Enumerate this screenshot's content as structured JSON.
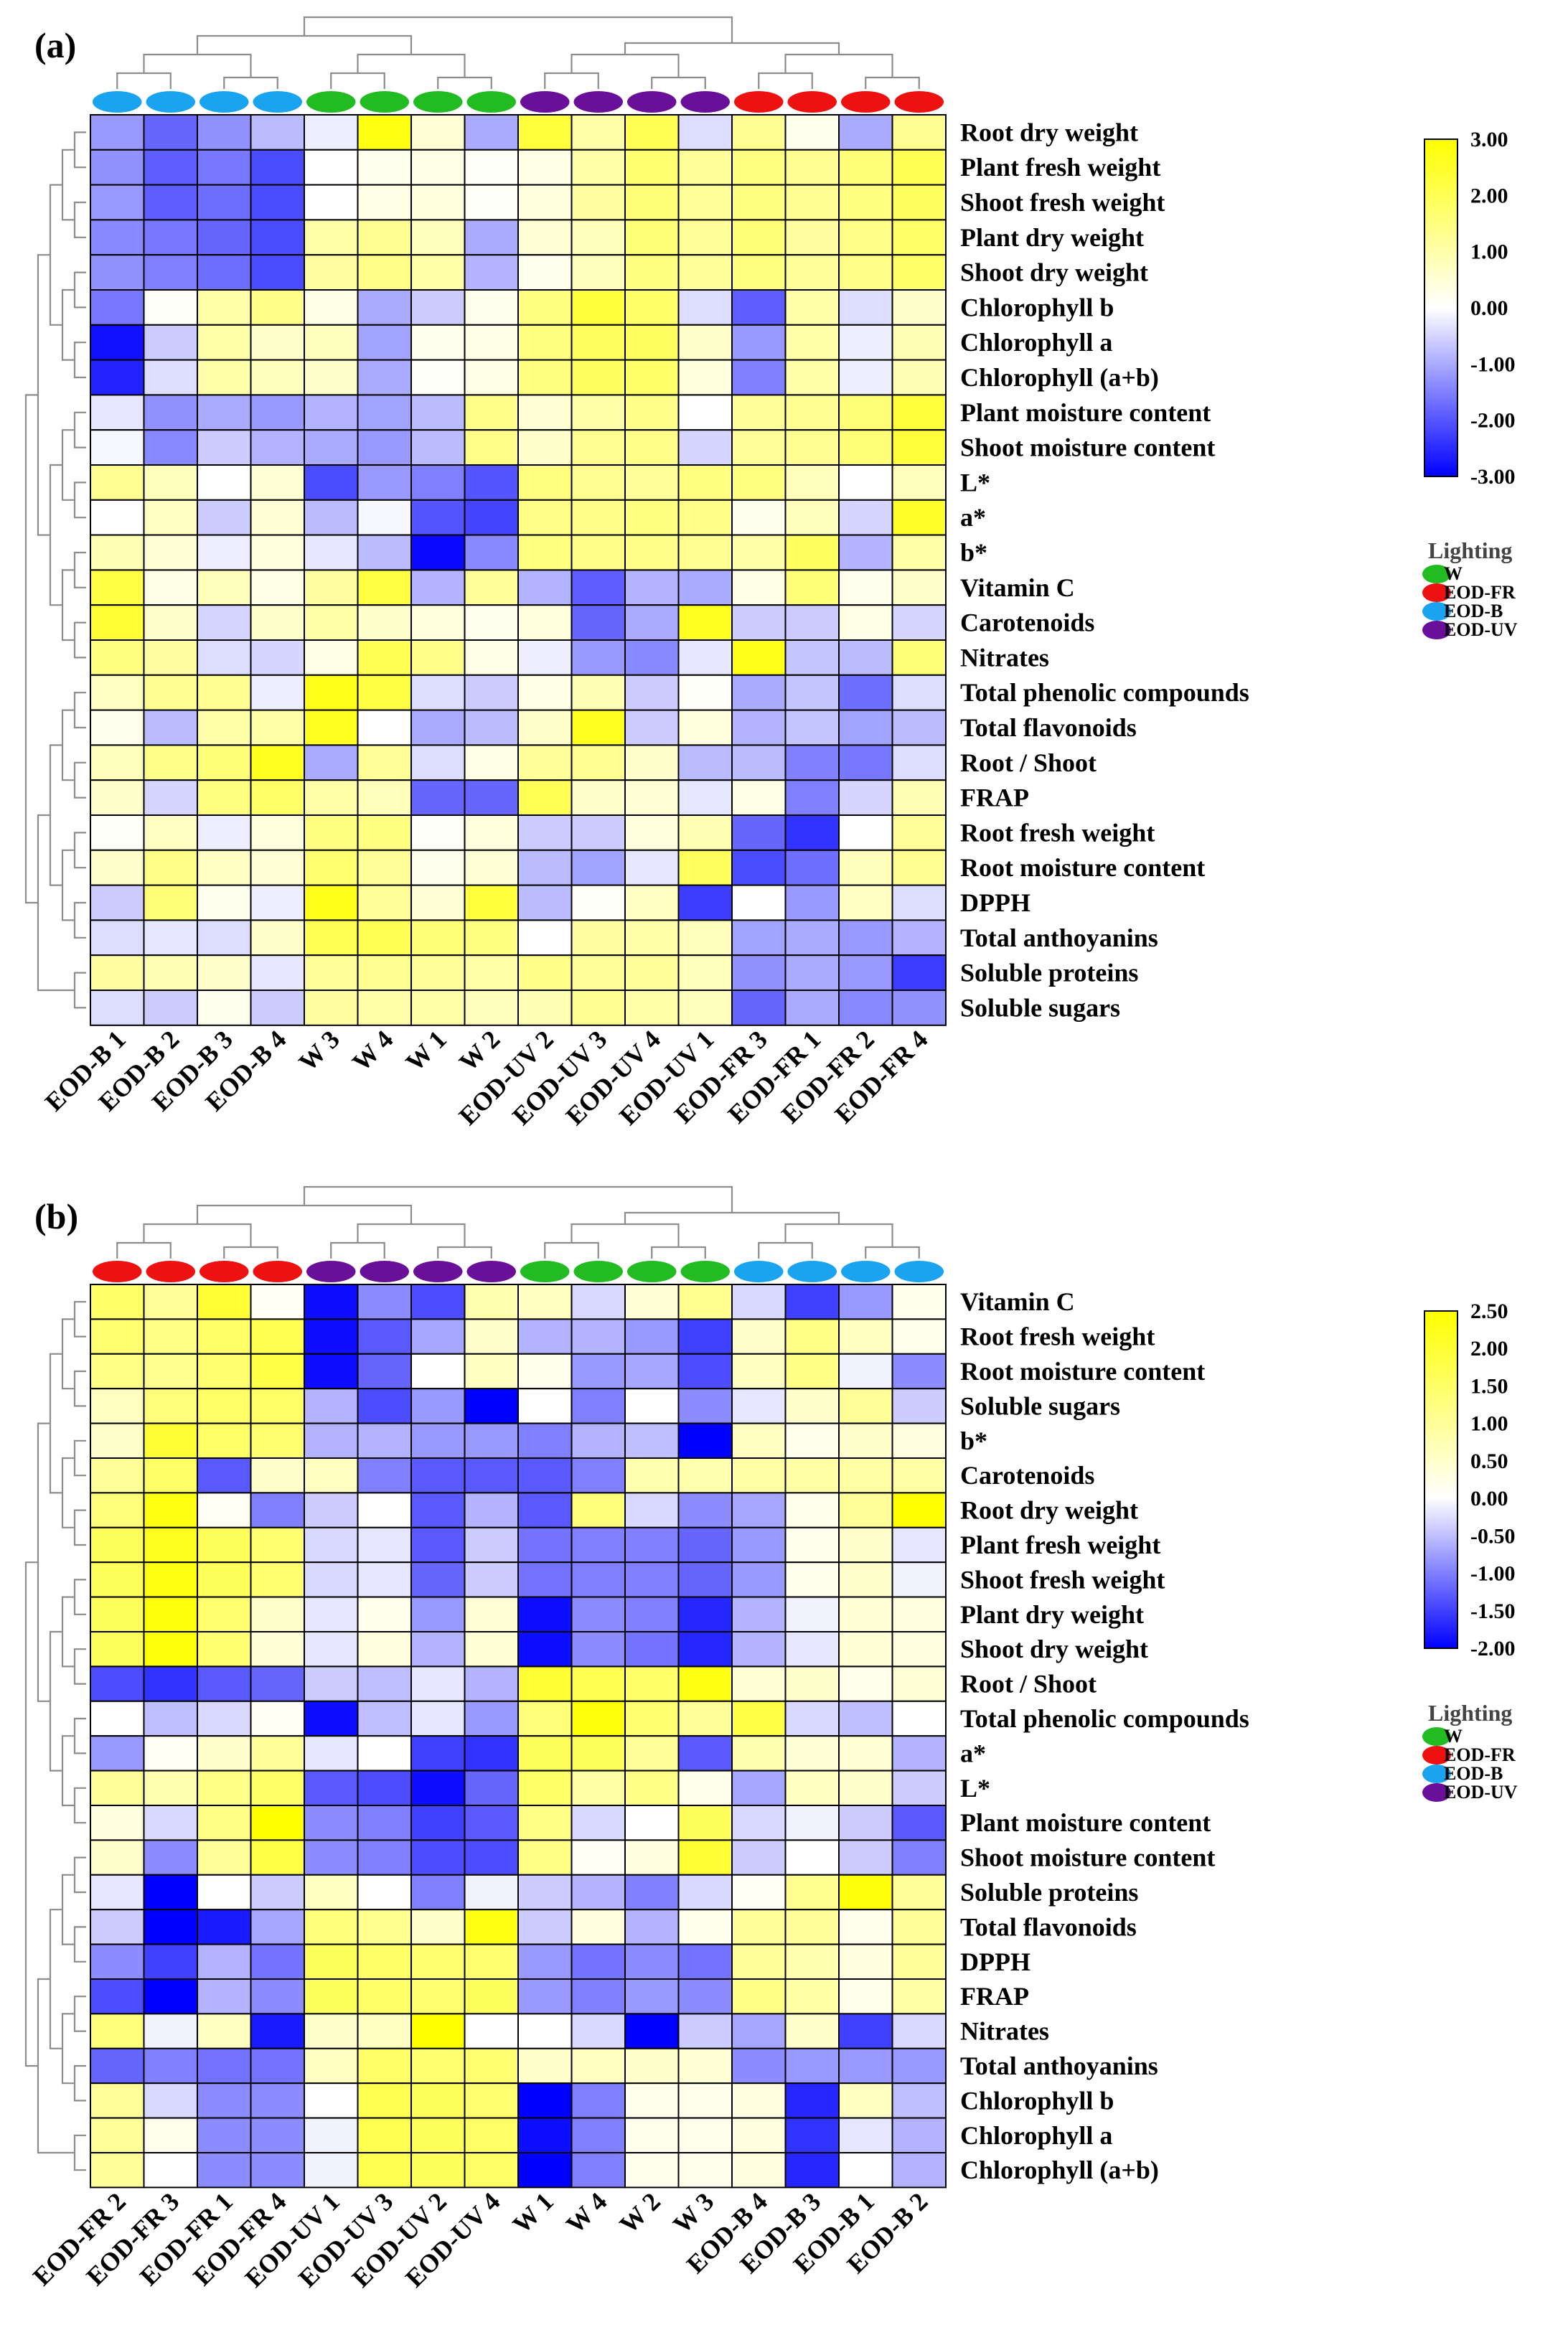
{
  "colors": {
    "W": "#22bb22",
    "EOD-FR": "#ee1111",
    "EOD-B": "#1aa3ee",
    "EOD-UV": "#6a0f99"
  },
  "chart_data": [
    {
      "type": "heatmap",
      "panel_label": "(a)",
      "columns": [
        "EOD-B 1",
        "EOD-B 2",
        "EOD-B 3",
        "EOD-B 4",
        "W 3",
        "W 4",
        "W 1",
        "W 2",
        "EOD-UV 2",
        "EOD-UV 3",
        "EOD-UV 4",
        "EOD-UV 1",
        "EOD-FR 3",
        "EOD-FR 1",
        "EOD-FR 2",
        "EOD-FR 4"
      ],
      "column_groups": [
        "EOD-B",
        "EOD-B",
        "EOD-B",
        "EOD-B",
        "W",
        "W",
        "W",
        "W",
        "EOD-UV",
        "EOD-UV",
        "EOD-UV",
        "EOD-UV",
        "EOD-FR",
        "EOD-FR",
        "EOD-FR",
        "EOD-FR"
      ],
      "rows": [
        "Root dry weight",
        "Plant fresh weight",
        "Shoot fresh weight",
        "Plant dry weight",
        "Shoot dry weight",
        "Chlorophyll b",
        "Chlorophyll a",
        "Chlorophyll (a+b)",
        "Plant moisture content",
        "Shoot moisture content",
        "L*",
        "a*",
        "b*",
        "Vitamin C",
        "Carotenoids",
        "Nitrates",
        "Total phenolic compounds",
        "Total flavonoids",
        "Root / Shoot",
        "FRAP",
        "Root fresh weight",
        "Root moisture content",
        "DPPH",
        "Total anthoyanins",
        "Soluble proteins",
        "Soluble sugars"
      ],
      "values": [
        [
          -1.2,
          -1.8,
          -1.3,
          -0.8,
          -0.2,
          2.8,
          0.5,
          -1.0,
          2.3,
          1.0,
          2.0,
          -0.4,
          1.3,
          0.2,
          -1.0,
          1.3
        ],
        [
          -1.3,
          -1.9,
          -1.6,
          -2.1,
          0.0,
          0.2,
          0.3,
          0.1,
          0.3,
          1.0,
          1.7,
          1.2,
          1.5,
          1.3,
          1.6,
          2.0
        ],
        [
          -1.2,
          -1.9,
          -1.7,
          -2.1,
          0.0,
          0.3,
          0.4,
          0.1,
          0.4,
          1.1,
          1.6,
          1.2,
          1.5,
          1.3,
          1.5,
          1.9
        ],
        [
          -1.4,
          -1.6,
          -1.8,
          -2.1,
          1.0,
          1.3,
          0.8,
          -1.0,
          0.5,
          0.8,
          1.6,
          1.2,
          1.6,
          1.1,
          1.4,
          1.8
        ],
        [
          -1.3,
          -1.5,
          -1.7,
          -2.1,
          1.1,
          1.4,
          1.0,
          -0.9,
          0.2,
          0.8,
          1.5,
          1.2,
          1.5,
          1.2,
          1.4,
          1.8
        ],
        [
          -1.6,
          0.1,
          1.0,
          1.4,
          0.3,
          -1.0,
          -0.6,
          0.2,
          1.5,
          2.3,
          1.8,
          -0.4,
          -1.9,
          1.0,
          -0.4,
          0.6
        ],
        [
          -2.8,
          -0.6,
          1.0,
          0.6,
          0.8,
          -1.1,
          0.2,
          0.3,
          1.5,
          1.9,
          1.9,
          0.6,
          -1.2,
          1.0,
          -0.2,
          0.9
        ],
        [
          -2.6,
          -0.4,
          1.0,
          0.8,
          0.6,
          -1.0,
          0.1,
          0.3,
          1.5,
          1.9,
          1.8,
          0.4,
          -1.5,
          1.0,
          -0.2,
          0.9
        ],
        [
          -0.3,
          -1.3,
          -1.0,
          -1.2,
          -0.9,
          -1.1,
          -0.8,
          1.4,
          0.5,
          1.0,
          1.4,
          0.0,
          1.2,
          1.3,
          1.6,
          2.3
        ],
        [
          -0.1,
          -1.4,
          -0.6,
          -0.9,
          -1.0,
          -1.2,
          -0.8,
          1.4,
          0.6,
          1.3,
          1.4,
          -0.5,
          1.2,
          1.3,
          1.6,
          2.3
        ],
        [
          1.3,
          0.8,
          0.0,
          0.5,
          -2.1,
          -1.2,
          -1.5,
          -2.0,
          1.5,
          1.3,
          1.2,
          1.5,
          1.5,
          0.8,
          0.0,
          0.8
        ],
        [
          0.0,
          0.7,
          -0.6,
          0.5,
          -0.8,
          -0.1,
          -2.0,
          -2.2,
          1.4,
          1.4,
          1.5,
          1.4,
          0.2,
          0.8,
          -0.5,
          2.5
        ],
        [
          0.9,
          0.5,
          -0.2,
          0.4,
          -0.3,
          -0.8,
          -2.9,
          -1.4,
          1.5,
          1.4,
          1.4,
          1.3,
          1.0,
          1.9,
          -0.9,
          1.0
        ],
        [
          2.2,
          0.3,
          0.8,
          0.3,
          1.1,
          2.2,
          -0.9,
          1.2,
          -0.9,
          -1.9,
          -0.9,
          -1.0,
          0.3,
          1.6,
          0.2,
          0.6
        ],
        [
          2.4,
          0.6,
          -0.5,
          0.6,
          1.0,
          0.6,
          0.4,
          0.2,
          0.4,
          -1.8,
          -1.0,
          2.6,
          -0.6,
          -0.6,
          0.3,
          -0.5
        ],
        [
          1.5,
          1.1,
          -0.4,
          -0.5,
          0.3,
          2.0,
          1.4,
          0.3,
          -0.2,
          -1.2,
          -1.4,
          -0.3,
          2.7,
          -0.7,
          -0.8,
          1.6
        ],
        [
          0.7,
          1.3,
          1.3,
          -0.2,
          2.7,
          2.2,
          -0.4,
          -0.6,
          0.3,
          0.9,
          -0.6,
          0.1,
          -1.0,
          -0.7,
          -1.7,
          -0.4
        ],
        [
          0.2,
          -0.8,
          1.0,
          1.0,
          2.6,
          0.0,
          -1.0,
          -0.8,
          0.6,
          2.6,
          -0.6,
          0.4,
          -0.9,
          -0.7,
          -1.1,
          -0.8
        ],
        [
          0.8,
          1.4,
          1.6,
          2.6,
          -1.0,
          1.2,
          -0.4,
          0.3,
          1.2,
          1.3,
          0.6,
          -0.8,
          -0.8,
          -1.5,
          -1.6,
          -0.4
        ],
        [
          0.6,
          -0.5,
          1.5,
          1.8,
          1.0,
          0.8,
          -1.8,
          -1.8,
          2.0,
          0.6,
          0.5,
          -0.3,
          0.3,
          -1.5,
          -0.5,
          0.9
        ],
        [
          0.1,
          0.7,
          -0.2,
          0.4,
          1.5,
          1.5,
          0.1,
          0.4,
          -0.6,
          -0.6,
          0.4,
          0.9,
          -1.8,
          -2.4,
          0.0,
          1.2
        ],
        [
          0.6,
          1.4,
          0.7,
          0.5,
          1.7,
          1.2,
          0.2,
          0.5,
          -0.8,
          -1.1,
          -0.3,
          1.9,
          -2.1,
          -1.7,
          0.8,
          1.3
        ],
        [
          -0.6,
          1.6,
          0.2,
          -0.2,
          2.7,
          1.2,
          0.5,
          2.3,
          -0.8,
          0.1,
          0.7,
          -2.3,
          0.0,
          -1.2,
          0.7,
          -0.4
        ],
        [
          -0.4,
          -0.3,
          -0.4,
          0.6,
          2.0,
          2.0,
          1.6,
          1.5,
          0.0,
          1.1,
          1.0,
          0.8,
          -1.1,
          -1.0,
          -1.2,
          -0.9
        ],
        [
          1.1,
          0.9,
          0.6,
          -0.3,
          1.2,
          1.3,
          1.2,
          1.0,
          1.4,
          1.2,
          1.2,
          0.8,
          -1.3,
          -1.0,
          -1.2,
          -2.3
        ],
        [
          -0.4,
          -0.6,
          0.2,
          -0.6,
          1.1,
          1.0,
          1.0,
          0.8,
          0.9,
          1.3,
          1.0,
          0.8,
          -1.8,
          -1.0,
          -1.4,
          -1.3
        ]
      ],
      "color_scale": {
        "min": -3.0,
        "max": 3.0,
        "low": "#0000ff",
        "mid": "#ffffff",
        "high": "#ffff00",
        "ticks": [
          "3.00",
          "2.00",
          "1.00",
          "0.00",
          "-1.00",
          "-2.00",
          "-3.00"
        ]
      },
      "legend": {
        "title": "Lighting",
        "items": [
          {
            "label": "W",
            "group": "W"
          },
          {
            "label": "EOD-FR",
            "group": "EOD-FR"
          },
          {
            "label": "EOD-B",
            "group": "EOD-B"
          },
          {
            "label": "EOD-UV",
            "group": "EOD-UV"
          }
        ]
      }
    },
    {
      "type": "heatmap",
      "panel_label": "(b)",
      "columns": [
        "EOD-FR 2",
        "EOD-FR 3",
        "EOD-FR 1",
        "EOD-FR 4",
        "EOD-UV 1",
        "EOD-UV 3",
        "EOD-UV 2",
        "EOD-UV 4",
        "W 1",
        "W 4",
        "W 2",
        "W 3",
        "EOD-B 4",
        "EOD-B 3",
        "EOD-B 1",
        "EOD-B 2"
      ],
      "column_groups": [
        "EOD-FR",
        "EOD-FR",
        "EOD-FR",
        "EOD-FR",
        "EOD-UV",
        "EOD-UV",
        "EOD-UV",
        "EOD-UV",
        "W",
        "W",
        "W",
        "W",
        "EOD-B",
        "EOD-B",
        "EOD-B",
        "EOD-B"
      ],
      "rows": [
        "Vitamin C",
        "Root fresh weight",
        "Root moisture content",
        "Soluble sugars",
        "b*",
        "Carotenoids",
        "Root dry weight",
        "Plant fresh weight",
        "Shoot fresh weight",
        "Plant dry weight",
        "Shoot dry weight",
        "Root / Shoot",
        "Total phenolic compounds",
        "a*",
        "L*",
        "Plant moisture content",
        "Shoot moisture content",
        "Soluble proteins",
        "Total flavonoids",
        "DPPH",
        "FRAP",
        "Nitrates",
        "Total anthoyanins",
        "Chlorophyll b",
        "Chlorophyll a",
        "Chlorophyll (a+b)"
      ],
      "values": [
        [
          1.5,
          1.0,
          2.0,
          0.1,
          -1.9,
          -0.9,
          -1.4,
          0.8,
          0.6,
          -0.3,
          0.4,
          1.1,
          -0.3,
          -1.5,
          -0.8,
          0.2
        ],
        [
          1.4,
          1.2,
          1.5,
          1.7,
          -1.9,
          -1.3,
          -0.7,
          0.5,
          -0.6,
          -0.6,
          -0.8,
          -1.5,
          0.5,
          1.2,
          0.6,
          0.2
        ],
        [
          1.2,
          1.1,
          1.4,
          1.8,
          -1.9,
          -1.2,
          0.0,
          0.6,
          0.2,
          -0.8,
          -0.7,
          -1.4,
          0.6,
          1.2,
          -0.1,
          -0.9
        ],
        [
          0.6,
          1.3,
          1.5,
          1.5,
          -0.6,
          -1.4,
          -0.8,
          -2.0,
          0.0,
          -1.0,
          0.0,
          -0.9,
          -0.2,
          0.5,
          1.0,
          -0.4
        ],
        [
          0.5,
          2.0,
          1.5,
          1.4,
          -0.6,
          -0.6,
          -0.8,
          -0.8,
          -1.0,
          -0.6,
          -0.5,
          -2.0,
          0.6,
          0.2,
          0.5,
          0.3
        ],
        [
          1.0,
          1.5,
          -1.3,
          0.5,
          0.6,
          -1.0,
          -1.3,
          -1.3,
          -1.3,
          -1.0,
          0.8,
          0.8,
          0.9,
          0.9,
          0.9,
          0.9
        ],
        [
          1.3,
          2.3,
          0.1,
          -1.0,
          -0.4,
          0.0,
          -1.3,
          -0.6,
          -1.3,
          1.3,
          -0.3,
          -0.9,
          -0.7,
          0.2,
          1.0,
          2.5
        ],
        [
          1.6,
          2.2,
          1.6,
          1.4,
          -0.3,
          -0.2,
          -1.3,
          -0.4,
          -1.1,
          -1.0,
          -1.0,
          -1.2,
          -0.8,
          0.2,
          0.5,
          -0.2
        ],
        [
          1.6,
          2.3,
          1.6,
          1.4,
          -0.3,
          -0.2,
          -1.2,
          -0.4,
          -1.1,
          -1.0,
          -1.0,
          -1.2,
          -0.8,
          0.2,
          0.5,
          -0.1
        ],
        [
          1.6,
          2.4,
          1.4,
          0.5,
          -0.2,
          0.2,
          -0.8,
          0.4,
          -1.9,
          -0.9,
          -1.0,
          -1.7,
          -0.6,
          -0.1,
          0.4,
          0.3
        ],
        [
          1.6,
          2.4,
          1.4,
          0.4,
          -0.2,
          0.3,
          -0.6,
          0.4,
          -1.9,
          -0.9,
          -1.1,
          -1.7,
          -0.6,
          -0.2,
          0.4,
          0.3
        ],
        [
          -1.4,
          -1.6,
          -1.3,
          -1.2,
          -0.4,
          -0.5,
          -0.2,
          -0.6,
          2.0,
          1.7,
          1.5,
          2.3,
          0.4,
          0.5,
          0.2,
          0.4
        ],
        [
          0.0,
          -0.5,
          -0.3,
          0.1,
          -1.9,
          -0.5,
          -0.2,
          -0.8,
          1.3,
          2.4,
          1.4,
          1.0,
          1.8,
          -0.3,
          -0.5,
          0.0
        ],
        [
          -0.8,
          0.1,
          0.5,
          1.0,
          -0.2,
          0.0,
          -1.5,
          -1.6,
          1.6,
          1.6,
          1.0,
          -1.3,
          0.8,
          0.4,
          0.4,
          -0.6
        ],
        [
          1.0,
          0.8,
          1.2,
          1.5,
          -1.3,
          -1.4,
          -1.9,
          -1.2,
          1.5,
          0.9,
          1.2,
          0.2,
          -0.7,
          0.6,
          0.5,
          -0.4
        ],
        [
          0.3,
          -0.3,
          1.2,
          2.5,
          -0.9,
          -1.0,
          -1.5,
          -1.3,
          1.2,
          -0.3,
          0.0,
          1.6,
          -0.3,
          -0.1,
          -0.4,
          -1.3
        ],
        [
          0.5,
          -0.9,
          1.0,
          1.8,
          -0.9,
          -1.0,
          -1.4,
          -1.4,
          1.2,
          0.1,
          0.3,
          2.0,
          -0.4,
          0.0,
          -0.4,
          -1.0
        ],
        [
          -0.2,
          -2.1,
          0.0,
          -0.4,
          0.6,
          0.0,
          -1.0,
          -0.1,
          -0.4,
          -0.6,
          -1.0,
          -0.3,
          0.1,
          1.1,
          2.4,
          1.0
        ],
        [
          -0.4,
          -2.2,
          -1.8,
          -0.7,
          1.3,
          1.1,
          0.5,
          2.3,
          -0.4,
          0.3,
          -0.6,
          0.2,
          1.0,
          1.0,
          0.2,
          1.0
        ],
        [
          -0.9,
          -1.5,
          -0.6,
          -1.1,
          1.6,
          1.5,
          1.4,
          1.4,
          -0.8,
          -1.1,
          -0.9,
          -1.1,
          1.0,
          0.8,
          0.3,
          1.0
        ],
        [
          -1.4,
          -2.0,
          -0.6,
          -0.9,
          1.6,
          1.5,
          1.4,
          1.6,
          -0.8,
          -1.0,
          -0.8,
          -0.9,
          1.2,
          0.9,
          0.2,
          0.9
        ],
        [
          1.3,
          -0.1,
          0.6,
          -1.8,
          0.5,
          0.6,
          2.5,
          0.0,
          0.0,
          -0.3,
          -2.1,
          -0.4,
          -0.7,
          0.5,
          -1.5,
          -0.3
        ],
        [
          -1.2,
          -1.0,
          -1.1,
          -1.1,
          0.6,
          1.5,
          1.4,
          1.4,
          0.5,
          0.6,
          0.5,
          0.4,
          -0.9,
          -0.8,
          -0.8,
          -0.8
        ],
        [
          1.0,
          -0.3,
          -0.9,
          -0.9,
          0.0,
          1.7,
          1.6,
          1.4,
          -2.0,
          -1.0,
          0.2,
          0.2,
          0.3,
          -1.7,
          0.6,
          -0.5
        ],
        [
          1.0,
          0.2,
          -0.9,
          -0.9,
          -0.1,
          1.7,
          1.6,
          1.5,
          -1.9,
          -1.0,
          0.2,
          0.2,
          0.3,
          -1.6,
          -0.2,
          -0.6
        ],
        [
          1.0,
          0.0,
          -0.9,
          -0.9,
          -0.1,
          1.7,
          1.6,
          1.5,
          -2.0,
          -1.0,
          0.2,
          0.2,
          0.3,
          -1.7,
          0.0,
          -0.6
        ]
      ],
      "color_scale": {
        "min": -2.0,
        "max": 2.5,
        "low": "#0000ff",
        "mid": "#ffffff",
        "high": "#ffff00",
        "ticks": [
          "2.50",
          "2.00",
          "1.50",
          "1.00",
          "0.50",
          "0.00",
          "-0.50",
          "-1.00",
          "-1.50",
          "-2.00"
        ]
      },
      "legend": {
        "title": "Lighting",
        "items": [
          {
            "label": "W",
            "group": "W"
          },
          {
            "label": "EOD-FR",
            "group": "EOD-FR"
          },
          {
            "label": "EOD-B",
            "group": "EOD-B"
          },
          {
            "label": "EOD-UV",
            "group": "EOD-UV"
          }
        ]
      }
    }
  ]
}
